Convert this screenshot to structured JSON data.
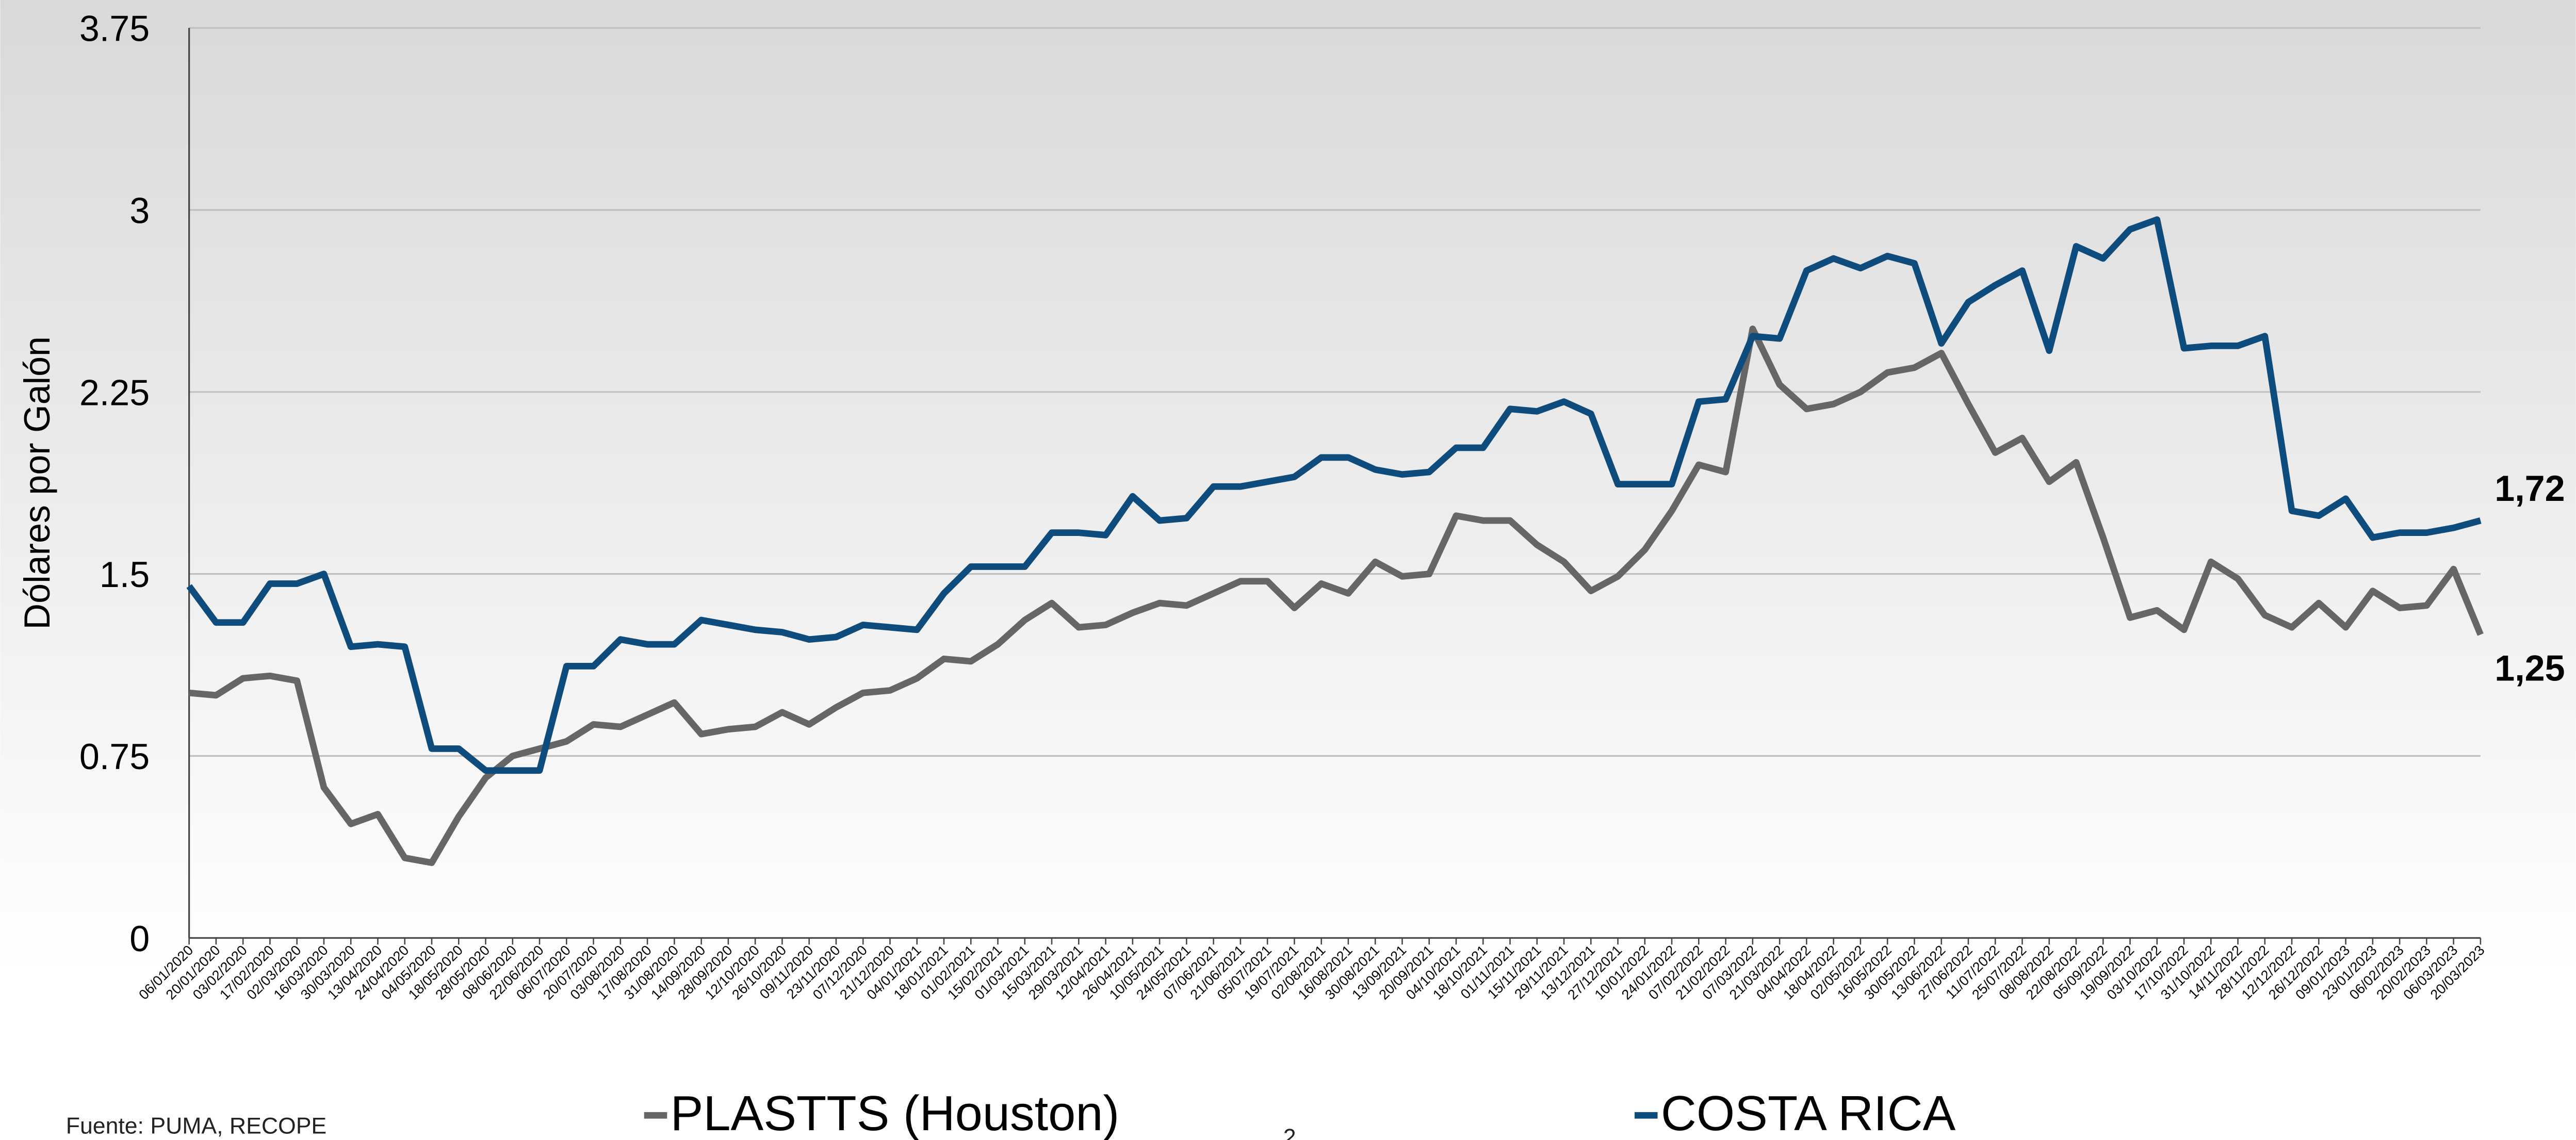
{
  "chart_data": {
    "type": "line",
    "y_label": "Dólares por Galón",
    "source": "Fuente: PUMA, RECOPE",
    "page_number": "2",
    "categories": [
      "06/01/2020",
      "20/01/2020",
      "03/02/2020",
      "17/02/2020",
      "02/03/2020",
      "16/03/2020",
      "30/03/2020",
      "13/04/2020",
      "24/04/2020",
      "04/05/2020",
      "18/05/2020",
      "28/05/2020",
      "08/06/2020",
      "22/06/2020",
      "06/07/2020",
      "20/07/2020",
      "03/08/2020",
      "17/08/2020",
      "31/08/2020",
      "14/09/2020",
      "28/09/2020",
      "12/10/2020",
      "26/10/2020",
      "09/11/2020",
      "23/11/2020",
      "07/12/2020",
      "21/12/2020",
      "04/01/2021",
      "18/01/2021",
      "01/02/2021",
      "15/02/2021",
      "01/03/2021",
      "15/03/2021",
      "29/03/2021",
      "12/04/2021",
      "26/04/2021",
      "10/05/2021",
      "24/05/2021",
      "07/06/2021",
      "21/06/2021",
      "05/07/2021",
      "19/07/2021",
      "02/08/2021",
      "16/08/2021",
      "30/08/2021",
      "13/09/2021",
      "20/09/2021",
      "04/10/2021",
      "18/10/2021",
      "01/11/2021",
      "15/11/2021",
      "29/11/2021",
      "13/12/2021",
      "27/12/2021",
      "10/01/2022",
      "24/01/2022",
      "07/02/2022",
      "21/02/2022",
      "07/03/2022",
      "21/03/2022",
      "04/04/2022",
      "18/04/2022",
      "02/05/2022",
      "16/05/2022",
      "30/05/2022",
      "13/06/2022",
      "27/06/2022",
      "11/07/2022",
      "25/07/2022",
      "08/08/2022",
      "22/08/2022",
      "05/09/2022",
      "19/09/2022",
      "03/10/2022",
      "17/10/2022",
      "31/10/2022",
      "14/11/2022",
      "28/11/2022",
      "12/12/2022",
      "26/12/2022",
      "09/01/2023",
      "23/01/2023",
      "06/02/2023",
      "20/02/2023",
      "06/03/2023",
      "20/03/2023"
    ],
    "series": [
      {
        "name": "PLASTTS (Houston)",
        "color": "#666666",
        "values": [
          1.01,
          1.0,
          1.07,
          1.08,
          1.06,
          0.62,
          0.47,
          0.51,
          0.33,
          0.31,
          0.5,
          0.66,
          0.75,
          0.78,
          0.81,
          0.88,
          0.87,
          0.92,
          0.97,
          0.84,
          0.86,
          0.87,
          0.93,
          0.88,
          0.95,
          1.01,
          1.02,
          1.07,
          1.15,
          1.14,
          1.21,
          1.31,
          1.38,
          1.28,
          1.29,
          1.34,
          1.38,
          1.37,
          1.42,
          1.47,
          1.47,
          1.36,
          1.46,
          1.42,
          1.55,
          1.49,
          1.5,
          1.74,
          1.72,
          1.72,
          1.62,
          1.55,
          1.43,
          1.49,
          1.6,
          1.76,
          1.95,
          1.92,
          2.51,
          2.28,
          2.18,
          2.2,
          2.25,
          2.33,
          2.35,
          2.41,
          2.2,
          2.0,
          2.06,
          1.88,
          1.96,
          1.65,
          1.32,
          1.35,
          1.27,
          1.55,
          1.48,
          1.33,
          1.28,
          1.38,
          1.28,
          1.43,
          1.36,
          1.37,
          1.52,
          1.25
        ],
        "value_labels": [
          null,
          null,
          null,
          null,
          null,
          null,
          null,
          null,
          null,
          null,
          null,
          null,
          null,
          null,
          null,
          null,
          null,
          null,
          null,
          null,
          null,
          null,
          null,
          null,
          null,
          null,
          null,
          null,
          null,
          null,
          null,
          null,
          null,
          null,
          null,
          null,
          null,
          null,
          null,
          null,
          null,
          null,
          null,
          null,
          null,
          null,
          null,
          null,
          null,
          null,
          null,
          null,
          null,
          null,
          null,
          null,
          null,
          null,
          null,
          null,
          null,
          null,
          null,
          null,
          null,
          null,
          null,
          null,
          null,
          null,
          null,
          null,
          null,
          null,
          null,
          null,
          null,
          null,
          null,
          null,
          null,
          null,
          null,
          null,
          null,
          "1,25"
        ]
      },
      {
        "name": "COSTA RICA",
        "color": "#0e4c7e",
        "values": [
          1.45,
          1.3,
          1.3,
          1.46,
          1.46,
          1.5,
          1.2,
          1.21,
          1.2,
          0.78,
          0.78,
          0.69,
          0.69,
          0.69,
          1.12,
          1.12,
          1.23,
          1.21,
          1.21,
          1.31,
          1.29,
          1.27,
          1.26,
          1.23,
          1.24,
          1.29,
          1.28,
          1.27,
          1.42,
          1.53,
          1.53,
          1.53,
          1.67,
          1.67,
          1.66,
          1.82,
          1.72,
          1.73,
          1.86,
          1.86,
          1.88,
          1.9,
          1.98,
          1.98,
          1.93,
          1.91,
          1.92,
          2.02,
          2.02,
          2.18,
          2.17,
          2.21,
          2.16,
          1.87,
          1.87,
          1.87,
          2.21,
          2.22,
          2.48,
          2.47,
          2.75,
          2.8,
          2.76,
          2.81,
          2.78,
          2.45,
          2.62,
          2.69,
          2.75,
          2.42,
          2.85,
          2.8,
          2.92,
          2.96,
          2.43,
          2.44,
          2.44,
          2.48,
          1.76,
          1.74,
          1.81,
          1.65,
          1.67,
          1.67,
          1.69,
          1.72
        ],
        "value_labels": [
          null,
          null,
          null,
          null,
          null,
          null,
          null,
          null,
          null,
          null,
          null,
          null,
          null,
          null,
          null,
          null,
          null,
          null,
          null,
          null,
          null,
          null,
          null,
          null,
          null,
          null,
          null,
          null,
          null,
          null,
          null,
          null,
          null,
          null,
          null,
          null,
          null,
          null,
          null,
          null,
          null,
          null,
          null,
          null,
          null,
          null,
          null,
          null,
          null,
          null,
          null,
          null,
          null,
          null,
          null,
          null,
          null,
          null,
          null,
          null,
          null,
          null,
          null,
          null,
          null,
          null,
          null,
          null,
          null,
          null,
          null,
          null,
          null,
          null,
          null,
          null,
          null,
          null,
          null,
          null,
          null,
          null,
          null,
          null,
          null,
          "1,72"
        ]
      }
    ],
    "ylim": [
      0,
      3.75
    ],
    "yticks": [
      0,
      0.75,
      1.5,
      2.25,
      3,
      3.75
    ],
    "grid": true
  }
}
